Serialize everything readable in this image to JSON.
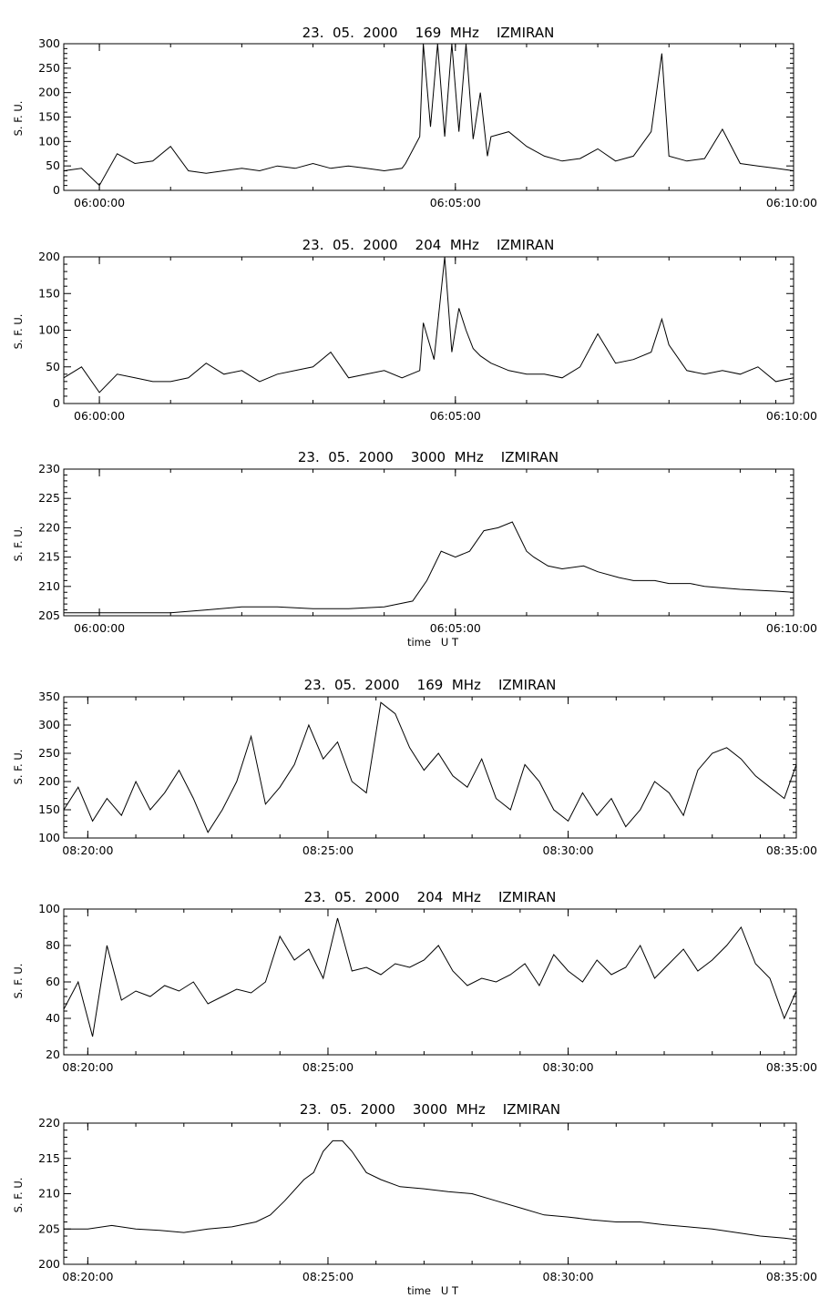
{
  "chart_data": [
    {
      "type": "line",
      "title": "23.  05.  2000    169  MHz    IZMIRAN",
      "ylabel": "S. F. U.",
      "xlabel": "",
      "ylim": [
        0,
        300
      ],
      "xlim": [
        0,
        10.25
      ],
      "x_unit": "minutes after 06:00:00 UT",
      "yticks": [
        0,
        50,
        100,
        150,
        200,
        250,
        300
      ],
      "xtick_labels": [
        "06:00:00",
        "06:05:00",
        "06:10:00"
      ],
      "xticks_minutes": [
        0.5,
        5.5,
        10.5
      ],
      "series": [
        {
          "x": [
            0.0,
            0.25,
            0.5,
            0.75,
            1.0,
            1.25,
            1.5,
            1.75,
            2.0,
            2.25,
            2.5,
            2.75,
            3.0,
            3.25,
            3.5,
            3.75,
            4.0,
            4.25,
            4.5,
            4.75,
            4.8,
            5.0,
            5.05,
            5.15,
            5.25,
            5.35,
            5.45,
            5.55,
            5.65,
            5.75,
            5.85,
            5.95,
            6.0,
            6.25,
            6.5,
            6.75,
            7.0,
            7.25,
            7.5,
            7.75,
            8.0,
            8.25,
            8.4,
            8.5,
            8.75,
            9.0,
            9.25,
            9.5,
            9.75,
            10.0,
            10.25
          ],
          "y": [
            40,
            45,
            10,
            75,
            55,
            60,
            90,
            40,
            35,
            40,
            45,
            40,
            50,
            45,
            55,
            45,
            50,
            45,
            40,
            45,
            55,
            110,
            300,
            130,
            300,
            110,
            300,
            120,
            300,
            105,
            200,
            70,
            110,
            120,
            90,
            70,
            60,
            65,
            85,
            60,
            70,
            120,
            280,
            70,
            60,
            65,
            125,
            55,
            50,
            45,
            40
          ]
        }
      ]
    },
    {
      "type": "line",
      "title": "23.  05.  2000    204  MHz    IZMIRAN",
      "ylabel": "S. F. U.",
      "xlabel": "",
      "ylim": [
        0,
        200
      ],
      "xlim": [
        0,
        10.25
      ],
      "x_unit": "minutes after 06:00:00 UT",
      "yticks": [
        0,
        50,
        100,
        150,
        200
      ],
      "xtick_labels": [
        "06:00:00",
        "06:05:00",
        "06:10:00"
      ],
      "xticks_minutes": [
        0.5,
        5.5,
        10.5
      ],
      "series": [
        {
          "x": [
            0.0,
            0.25,
            0.5,
            0.75,
            1.0,
            1.25,
            1.5,
            1.75,
            2.0,
            2.25,
            2.5,
            2.75,
            3.0,
            3.25,
            3.5,
            3.75,
            4.0,
            4.25,
            4.5,
            4.75,
            5.0,
            5.05,
            5.2,
            5.35,
            5.45,
            5.55,
            5.65,
            5.75,
            5.85,
            6.0,
            6.25,
            6.5,
            6.75,
            7.0,
            7.25,
            7.5,
            7.75,
            8.0,
            8.25,
            8.4,
            8.5,
            8.75,
            9.0,
            9.25,
            9.5,
            9.75,
            10.0,
            10.25
          ],
          "y": [
            35,
            50,
            15,
            40,
            35,
            30,
            30,
            35,
            55,
            40,
            45,
            30,
            40,
            45,
            50,
            70,
            35,
            40,
            45,
            35,
            45,
            110,
            60,
            200,
            70,
            130,
            100,
            75,
            65,
            55,
            45,
            40,
            40,
            35,
            50,
            95,
            55,
            60,
            70,
            115,
            80,
            45,
            40,
            45,
            40,
            50,
            30,
            35
          ]
        }
      ]
    },
    {
      "type": "line",
      "title": "23.  05.  2000    3000  MHz    IZMIRAN",
      "ylabel": "S. F. U.",
      "xlabel": "time   U T",
      "ylim": [
        205,
        230
      ],
      "xlim": [
        0,
        10.25
      ],
      "x_unit": "minutes after 06:00:00 UT",
      "yticks": [
        205,
        210,
        215,
        220,
        225,
        230
      ],
      "xtick_labels": [
        "06:00:00",
        "06:05:00",
        "06:10:00"
      ],
      "xticks_minutes": [
        0.5,
        5.5,
        10.5
      ],
      "series": [
        {
          "x": [
            0.0,
            0.5,
            1.0,
            1.5,
            2.0,
            2.5,
            3.0,
            3.5,
            4.0,
            4.5,
            4.9,
            5.1,
            5.3,
            5.5,
            5.7,
            5.9,
            6.1,
            6.3,
            6.5,
            6.6,
            6.8,
            7.0,
            7.3,
            7.5,
            7.8,
            8.0,
            8.3,
            8.5,
            8.8,
            9.0,
            9.3,
            9.5,
            9.8,
            10.0,
            10.25
          ],
          "y": [
            205.5,
            205.5,
            205.5,
            205.5,
            206,
            206.5,
            206.5,
            206.2,
            206.2,
            206.5,
            207.5,
            211,
            216,
            215,
            216,
            219.5,
            220,
            221,
            216,
            215,
            213.5,
            213,
            213.5,
            212.5,
            211.5,
            211,
            211,
            210.5,
            210.5,
            210,
            209.7,
            209.5,
            209.3,
            209.2,
            209
          ]
        }
      ]
    },
    {
      "type": "line",
      "title": "23.  05.  2000    169  MHz    IZMIRAN",
      "ylabel": "S. F. U.",
      "xlabel": "",
      "ylim": [
        100,
        350
      ],
      "xlim": [
        0,
        15.25
      ],
      "x_unit": "minutes after 08:20:00 UT",
      "yticks": [
        100,
        150,
        200,
        250,
        300,
        350
      ],
      "xtick_labels": [
        "08:20:00",
        "08:25:00",
        "08:30:00",
        "08:35:00"
      ],
      "xticks_minutes": [
        0.5,
        5.5,
        10.5,
        15.25
      ],
      "series": [
        {
          "x": [
            0.0,
            0.3,
            0.6,
            0.9,
            1.2,
            1.5,
            1.8,
            2.1,
            2.4,
            2.7,
            3.0,
            3.3,
            3.6,
            3.9,
            4.2,
            4.5,
            4.8,
            5.1,
            5.4,
            5.7,
            6.0,
            6.3,
            6.6,
            6.9,
            7.2,
            7.5,
            7.8,
            8.1,
            8.4,
            8.7,
            9.0,
            9.3,
            9.6,
            9.9,
            10.2,
            10.5,
            10.8,
            11.1,
            11.4,
            11.7,
            12.0,
            12.3,
            12.6,
            12.9,
            13.2,
            13.5,
            13.8,
            14.1,
            14.4,
            14.7,
            15.0,
            15.25
          ],
          "y": [
            150,
            190,
            130,
            170,
            140,
            200,
            150,
            180,
            220,
            170,
            110,
            150,
            200,
            280,
            160,
            190,
            230,
            300,
            240,
            270,
            200,
            180,
            340,
            320,
            260,
            220,
            250,
            210,
            190,
            240,
            170,
            150,
            230,
            200,
            150,
            130,
            180,
            140,
            170,
            120,
            150,
            200,
            180,
            140,
            220,
            250,
            260,
            240,
            210,
            190,
            170,
            230
          ]
        }
      ]
    },
    {
      "type": "line",
      "title": "23.  05.  2000    204  MHz    IZMIRAN",
      "ylabel": "S. F. U.",
      "xlabel": "",
      "ylim": [
        20,
        100
      ],
      "xlim": [
        0,
        15.25
      ],
      "x_unit": "minutes after 08:20:00 UT",
      "yticks": [
        20,
        40,
        60,
        80,
        100
      ],
      "xtick_labels": [
        "08:20:00",
        "08:25:00",
        "08:30:00",
        "08:35:00"
      ],
      "xticks_minutes": [
        0.5,
        5.5,
        10.5,
        15.25
      ],
      "series": [
        {
          "x": [
            0.0,
            0.3,
            0.6,
            0.9,
            1.2,
            1.5,
            1.8,
            2.1,
            2.4,
            2.7,
            3.0,
            3.3,
            3.6,
            3.9,
            4.2,
            4.5,
            4.8,
            5.1,
            5.4,
            5.7,
            6.0,
            6.3,
            6.6,
            6.9,
            7.2,
            7.5,
            7.8,
            8.1,
            8.4,
            8.7,
            9.0,
            9.3,
            9.6,
            9.9,
            10.2,
            10.5,
            10.8,
            11.1,
            11.4,
            11.7,
            12.0,
            12.3,
            12.6,
            12.9,
            13.2,
            13.5,
            13.8,
            14.1,
            14.4,
            14.7,
            15.0,
            15.25
          ],
          "y": [
            45,
            60,
            30,
            80,
            50,
            55,
            52,
            58,
            55,
            60,
            48,
            52,
            56,
            54,
            60,
            85,
            72,
            78,
            62,
            95,
            66,
            68,
            64,
            70,
            68,
            72,
            80,
            66,
            58,
            62,
            60,
            64,
            70,
            58,
            75,
            66,
            60,
            72,
            64,
            68,
            80,
            62,
            70,
            78,
            66,
            72,
            80,
            90,
            70,
            62,
            40,
            55
          ]
        }
      ]
    },
    {
      "type": "line",
      "title": "23.  05.  2000    3000  MHz    IZMIRAN",
      "ylabel": "S. F. U.",
      "xlabel": "time   U T",
      "ylim": [
        200,
        220
      ],
      "xlim": [
        0,
        15.25
      ],
      "x_unit": "minutes after 08:20:00 UT",
      "yticks": [
        200,
        205,
        210,
        215,
        220
      ],
      "xtick_labels": [
        "08:20:00",
        "08:25:00",
        "08:30:00",
        "08:35:00"
      ],
      "xticks_minutes": [
        0.5,
        5.5,
        10.5,
        15.25
      ],
      "series": [
        {
          "x": [
            0.0,
            0.5,
            1.0,
            1.5,
            2.0,
            2.5,
            3.0,
            3.5,
            4.0,
            4.3,
            4.6,
            5.0,
            5.2,
            5.4,
            5.6,
            5.8,
            6.0,
            6.3,
            6.6,
            7.0,
            7.5,
            8.0,
            8.5,
            9.0,
            9.5,
            10.0,
            10.5,
            11.0,
            11.5,
            12.0,
            12.5,
            13.0,
            13.5,
            14.0,
            14.5,
            15.0,
            15.25
          ],
          "y": [
            205,
            205,
            205.5,
            205,
            204.8,
            204.5,
            205,
            205.3,
            206,
            207,
            209,
            212,
            213,
            216,
            217.5,
            217.5,
            216,
            213,
            212,
            211,
            210.7,
            210.3,
            210,
            209,
            208,
            207,
            206.7,
            206.3,
            206,
            206,
            205.6,
            205.3,
            205,
            204.5,
            204,
            203.7,
            203.5
          ]
        }
      ]
    }
  ]
}
